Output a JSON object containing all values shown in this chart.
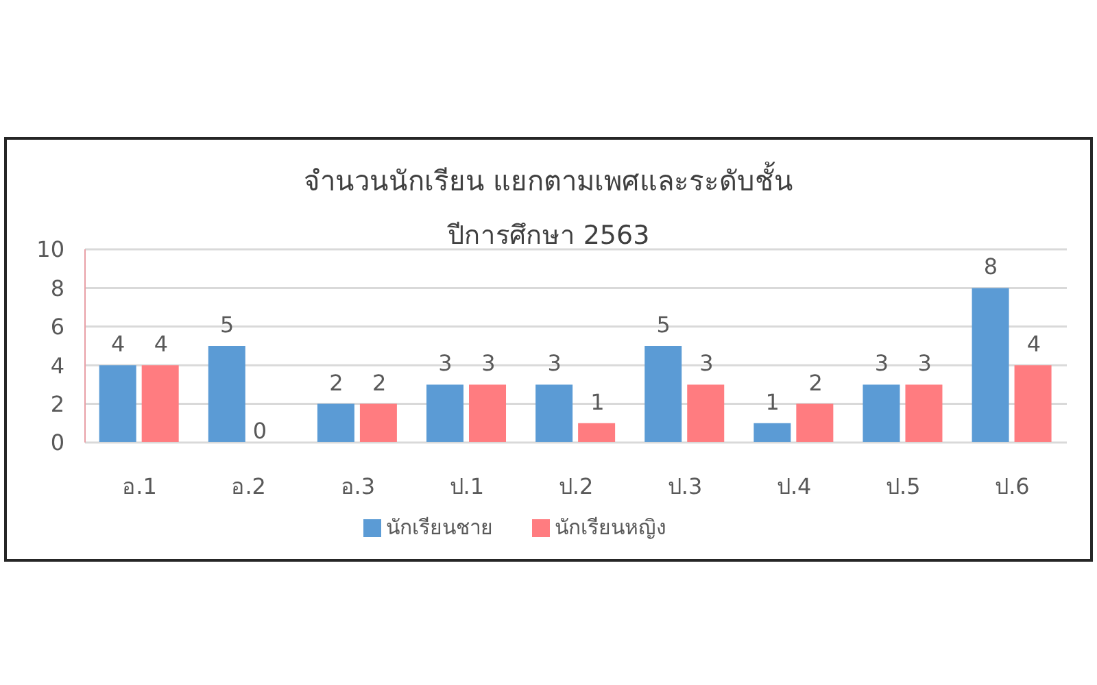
{
  "chart_data": {
    "type": "bar",
    "title": "จำนวนนักเรียน แยกตามเพศและระดับชั้น",
    "subtitle": "ปีการศึกษา 2563",
    "categories": [
      "อ.1",
      "อ.2",
      "อ.3",
      "ป.1",
      "ป.2",
      "ป.3",
      "ป.4",
      "ป.5",
      "ป.6"
    ],
    "series": [
      {
        "name": "นักเรียนชาย",
        "color": "#5b9bd5",
        "values": [
          4,
          5,
          2,
          3,
          3,
          5,
          1,
          3,
          8
        ]
      },
      {
        "name": "นักเรียนหญิง",
        "color": "#ff7c80",
        "values": [
          4,
          0,
          2,
          3,
          1,
          3,
          2,
          3,
          4
        ]
      }
    ],
    "ylim": [
      0,
      10
    ],
    "yticks": [
      0,
      2,
      4,
      6,
      8,
      10
    ],
    "grid": "y",
    "legend": "bottom",
    "data_labels": true
  }
}
